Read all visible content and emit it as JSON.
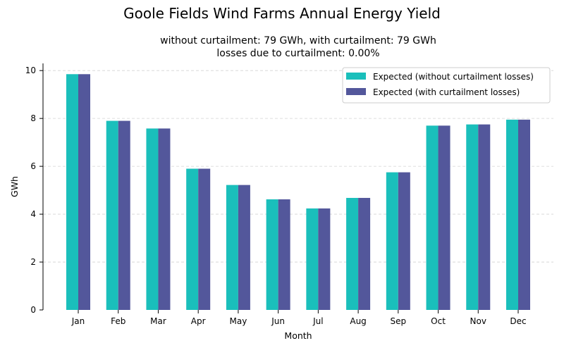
{
  "chart_data": {
    "type": "bar",
    "title": "Goole Fields Wind Farms Annual Energy Yield",
    "subtitle_lines": [
      "without curtailment: 79 GWh, with curtailment: 79 GWh",
      "losses due to curtailment: 0.00%"
    ],
    "xlabel": "Month",
    "ylabel": "GWh",
    "ylim": [
      0,
      10.3
    ],
    "yticks": [
      0,
      2,
      4,
      6,
      8,
      10
    ],
    "grid": "y-dashed",
    "legend_position": "top-right",
    "categories": [
      "Jan",
      "Feb",
      "Mar",
      "Apr",
      "May",
      "Jun",
      "Jul",
      "Aug",
      "Sep",
      "Oct",
      "Nov",
      "Dec"
    ],
    "series": [
      {
        "name": "Expected (without curtailment losses)",
        "color": "#1abfbb",
        "values": [
          9.85,
          7.9,
          7.58,
          5.9,
          5.22,
          4.62,
          4.24,
          4.68,
          5.75,
          7.7,
          7.75,
          7.95
        ]
      },
      {
        "name": "Expected (with curtailment losses)",
        "color": "#53579b",
        "values": [
          9.85,
          7.9,
          7.58,
          5.9,
          5.22,
          4.62,
          4.24,
          4.68,
          5.75,
          7.7,
          7.75,
          7.95
        ]
      }
    ]
  }
}
